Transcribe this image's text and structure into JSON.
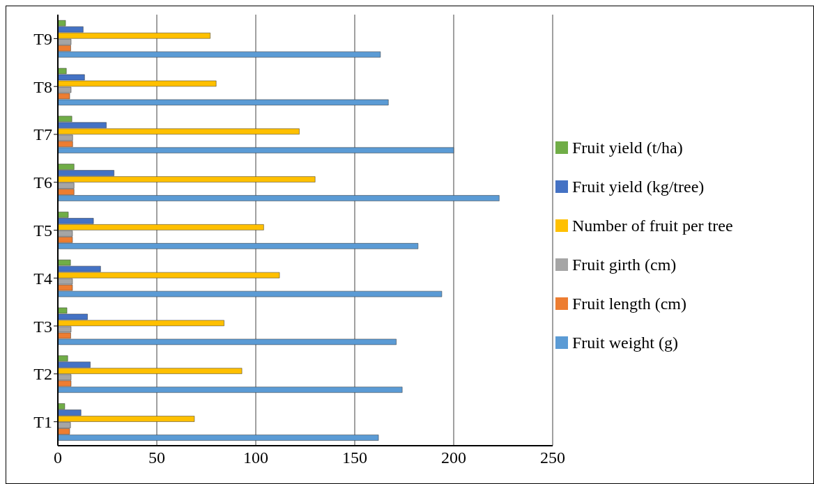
{
  "chart_data": {
    "type": "bar",
    "orientation": "horizontal",
    "categories": [
      "T9",
      "T8",
      "T7",
      "T6",
      "T5",
      "T4",
      "T3",
      "T2",
      "T1"
    ],
    "series": [
      {
        "name": "Fruit yield (t/ha)",
        "color": "#70ad47",
        "values": [
          3.9,
          4.3,
          7.1,
          8.2,
          5.3,
          6.4,
          4.6,
          5,
          3.5
        ]
      },
      {
        "name": "Fruit yield (kg/tree)",
        "color": "#4472c4",
        "values": [
          12.8,
          13.5,
          24.5,
          28.4,
          18,
          21.6,
          15,
          16.4,
          11.7
        ]
      },
      {
        "name": "Number of fruit per tree",
        "color": "#ffc000",
        "values": [
          77,
          80,
          122,
          130,
          104,
          112,
          84,
          93,
          69
        ]
      },
      {
        "name": "Fruit girth (cm)",
        "color": "#a5a5a5",
        "values": [
          6.7,
          6.7,
          7.5,
          8.2,
          7.4,
          7.4,
          6.7,
          6.7,
          6.4
        ]
      },
      {
        "name": "Fruit length (cm)",
        "color": "#ed7d31",
        "values": [
          6.5,
          6,
          7.5,
          8.2,
          7.4,
          7.4,
          6.5,
          6.7,
          6
        ]
      },
      {
        "name": "Fruit weight (g)",
        "color": "#5b9bd5",
        "values": [
          163,
          167,
          200,
          223,
          182,
          194,
          171,
          174,
          162
        ]
      }
    ],
    "xlim": [
      0,
      250
    ],
    "xticks": [
      0,
      50,
      100,
      150,
      200,
      250
    ],
    "grid": "x",
    "legend": "right"
  }
}
